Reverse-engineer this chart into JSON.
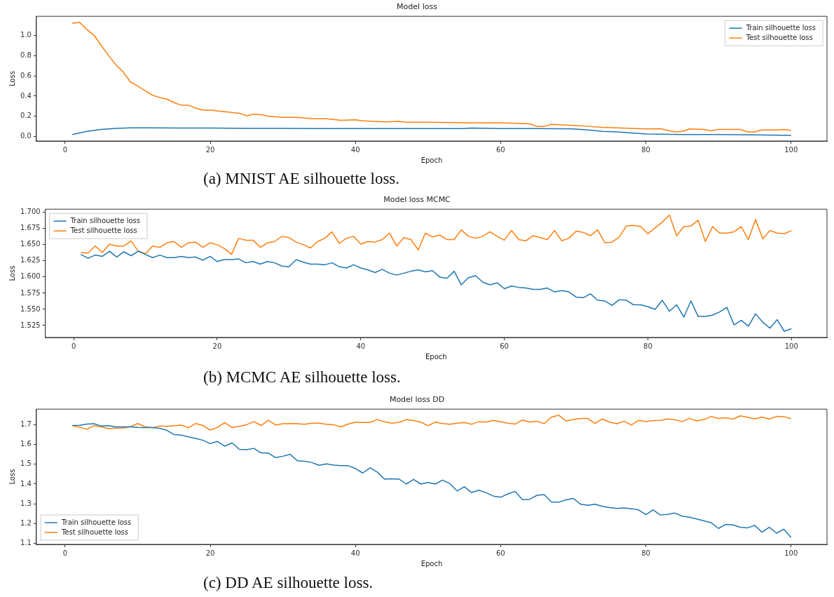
{
  "chart_data": [
    {
      "type": "line",
      "title": "Model loss",
      "xlabel": "Epoch",
      "ylabel": "Loss",
      "xlim": [
        -3.95,
        104.95
      ],
      "xticks": [
        0,
        20,
        40,
        60,
        80,
        100
      ],
      "ylim": [
        -0.045,
        1.19
      ],
      "yticks": [
        {
          "value": 0,
          "label": "0.0"
        },
        0.2,
        0.4,
        0.6,
        0.8,
        {
          "value": 1,
          "label": "1.0"
        }
      ],
      "legend": "top right",
      "annotations": [
        "(a) MNIST AE silhouette loss."
      ],
      "series": [
        {
          "name": "Train silhouette loss",
          "color": "#1f77b4",
          "x": [
            1,
            3,
            5,
            7,
            9,
            12,
            16,
            20,
            25,
            30,
            35,
            40,
            45,
            50,
            55,
            56,
            60,
            65,
            70,
            72,
            74,
            76,
            80,
            85,
            90,
            95,
            100
          ],
          "values": [
            0.02,
            0.05,
            0.07,
            0.08,
            0.085,
            0.085,
            0.083,
            0.083,
            0.08,
            0.08,
            0.078,
            0.078,
            0.078,
            0.078,
            0.078,
            0.083,
            0.078,
            0.078,
            0.075,
            0.065,
            0.05,
            0.045,
            0.025,
            0.02,
            0.02,
            0.015,
            0.01
          ]
        },
        {
          "name": "Test silhouette loss",
          "color": "#ff7f0e",
          "x": [
            1,
            2,
            3,
            4,
            5,
            6,
            7,
            8,
            9,
            10,
            11,
            12,
            13,
            14,
            15,
            16,
            17,
            18,
            19,
            20,
            22,
            24,
            25,
            26,
            27,
            28,
            30,
            32,
            34,
            36,
            38,
            40,
            41,
            44,
            46,
            47,
            50,
            55,
            60,
            62,
            64,
            65,
            66,
            67,
            70,
            72,
            74,
            76,
            80,
            82,
            84,
            85,
            86,
            88,
            89,
            90,
            93,
            94,
            95,
            96,
            98,
            99,
            100
          ],
          "values": [
            1.12,
            1.13,
            1.06,
            1.0,
            0.9,
            0.8,
            0.71,
            0.64,
            0.54,
            0.5,
            0.455,
            0.41,
            0.385,
            0.37,
            0.335,
            0.31,
            0.31,
            0.28,
            0.26,
            0.26,
            0.245,
            0.23,
            0.205,
            0.22,
            0.215,
            0.2,
            0.19,
            0.19,
            0.175,
            0.175,
            0.16,
            0.165,
            0.155,
            0.145,
            0.15,
            0.14,
            0.14,
            0.135,
            0.136,
            0.13,
            0.125,
            0.1,
            0.1,
            0.12,
            0.11,
            0.1,
            0.09,
            0.085,
            0.075,
            0.077,
            0.045,
            0.05,
            0.075,
            0.07,
            0.055,
            0.07,
            0.07,
            0.045,
            0.045,
            0.065,
            0.065,
            0.07,
            0.06
          ]
        }
      ]
    },
    {
      "type": "line",
      "title": "Model loss MCMC",
      "xlabel": "Epoch",
      "ylabel": "Loss",
      "xlim": [
        -3.95,
        104.95
      ],
      "xticks": [
        0,
        20,
        40,
        60,
        80,
        100
      ],
      "ylim": [
        1.5065,
        1.705
      ],
      "yticks": [
        1.525,
        {
          "value": 1.55,
          "label": "1.550"
        },
        1.575,
        {
          "value": 1.6,
          "label": "1.600"
        },
        1.625,
        {
          "value": 1.65,
          "label": "1.650"
        },
        1.675,
        {
          "value": 1.7,
          "label": "1.700"
        }
      ],
      "legend": "top left",
      "annotations": [
        "(b) MCMC AE silhouette loss."
      ],
      "x": [
        1,
        2,
        3,
        4,
        5,
        6,
        7,
        8,
        9,
        10,
        11,
        12,
        13,
        14,
        15,
        16,
        17,
        18,
        19,
        20,
        21,
        22,
        23,
        24,
        25,
        26,
        27,
        28,
        29,
        30,
        31,
        32,
        33,
        34,
        35,
        36,
        37,
        38,
        39,
        40,
        41,
        42,
        43,
        44,
        45,
        46,
        47,
        48,
        49,
        50,
        51,
        52,
        53,
        54,
        55,
        56,
        57,
        58,
        59,
        60,
        61,
        62,
        63,
        64,
        65,
        66,
        67,
        68,
        69,
        70,
        71,
        72,
        73,
        74,
        75,
        76,
        77,
        78,
        79,
        80,
        81,
        82,
        83,
        84,
        85,
        86,
        87,
        88,
        89,
        90,
        91,
        92,
        93,
        94,
        95,
        96,
        97,
        98,
        99,
        100
      ],
      "series": [
        {
          "name": "Train silhouette loss",
          "color": "#1f77b4",
          "values": [
            1.635,
            1.629,
            1.634,
            1.632,
            1.64,
            1.631,
            1.639,
            1.633,
            1.64,
            1.635,
            1.63,
            1.634,
            1.63,
            1.63,
            1.632,
            1.63,
            1.631,
            1.626,
            1.632,
            1.624,
            1.627,
            1.627,
            1.628,
            1.622,
            1.624,
            1.62,
            1.624,
            1.622,
            1.617,
            1.616,
            1.627,
            1.623,
            1.62,
            1.62,
            1.619,
            1.622,
            1.616,
            1.614,
            1.619,
            1.614,
            1.611,
            1.607,
            1.612,
            1.606,
            1.603,
            1.606,
            1.609,
            1.611,
            1.608,
            1.61,
            1.6,
            1.598,
            1.609,
            1.588,
            1.599,
            1.602,
            1.592,
            1.588,
            1.591,
            1.582,
            1.586,
            1.584,
            1.583,
            1.581,
            1.581,
            1.583,
            1.577,
            1.579,
            1.577,
            1.569,
            1.568,
            1.574,
            1.564,
            1.563,
            1.556,
            1.565,
            1.564,
            1.557,
            1.557,
            1.554,
            1.55,
            1.564,
            1.547,
            1.557,
            1.538,
            1.563,
            1.539,
            1.539,
            1.541,
            1.546,
            1.553,
            1.526,
            1.533,
            1.524,
            1.543,
            1.53,
            1.521,
            1.534,
            1.516,
            1.52
          ]
        },
        {
          "name": "Test silhouette loss",
          "color": "#ff7f0e",
          "values": [
            1.638,
            1.637,
            1.648,
            1.638,
            1.651,
            1.648,
            1.648,
            1.656,
            1.64,
            1.636,
            1.648,
            1.646,
            1.653,
            1.655,
            1.646,
            1.653,
            1.654,
            1.646,
            1.653,
            1.65,
            1.644,
            1.635,
            1.66,
            1.657,
            1.657,
            1.646,
            1.653,
            1.655,
            1.663,
            1.661,
            1.654,
            1.65,
            1.645,
            1.655,
            1.66,
            1.67,
            1.652,
            1.66,
            1.663,
            1.651,
            1.655,
            1.654,
            1.658,
            1.668,
            1.648,
            1.661,
            1.658,
            1.642,
            1.668,
            1.662,
            1.665,
            1.658,
            1.658,
            1.673,
            1.663,
            1.66,
            1.663,
            1.67,
            1.663,
            1.657,
            1.672,
            1.658,
            1.656,
            1.664,
            1.661,
            1.658,
            1.672,
            1.656,
            1.66,
            1.671,
            1.669,
            1.664,
            1.673,
            1.653,
            1.654,
            1.662,
            1.679,
            1.68,
            1.678,
            1.667,
            1.676,
            1.685,
            1.696,
            1.664,
            1.678,
            1.679,
            1.688,
            1.655,
            1.678,
            1.668,
            1.668,
            1.67,
            1.678,
            1.658,
            1.689,
            1.659,
            1.672,
            1.668,
            1.667,
            1.672
          ]
        }
      ]
    },
    {
      "type": "line",
      "title": "Model loss DD",
      "xlabel": "Epoch",
      "ylabel": "Loss",
      "xlim": [
        -3.95,
        104.95
      ],
      "xticks": [
        0,
        20,
        40,
        60,
        80,
        100
      ],
      "ylim": [
        1.094,
        1.78
      ],
      "yticks": [
        1.1,
        1.2,
        1.3,
        1.4,
        1.5,
        1.6,
        1.7
      ],
      "legend": "bottom left",
      "annotations": [
        "(c) DD AE silhouette loss."
      ],
      "x": [
        1,
        2,
        3,
        4,
        5,
        6,
        7,
        8,
        9,
        10,
        11,
        12,
        13,
        14,
        15,
        16,
        17,
        18,
        19,
        20,
        21,
        22,
        23,
        24,
        25,
        26,
        27,
        28,
        29,
        30,
        31,
        32,
        33,
        34,
        35,
        36,
        37,
        38,
        39,
        40,
        41,
        42,
        43,
        44,
        45,
        46,
        47,
        48,
        49,
        50,
        51,
        52,
        53,
        54,
        55,
        56,
        57,
        58,
        59,
        60,
        61,
        62,
        63,
        64,
        65,
        66,
        67,
        68,
        69,
        70,
        71,
        72,
        73,
        74,
        75,
        76,
        77,
        78,
        79,
        80,
        81,
        82,
        83,
        84,
        85,
        86,
        87,
        88,
        89,
        90,
        91,
        92,
        93,
        94,
        95,
        96,
        97,
        98,
        99,
        100
      ],
      "series": [
        {
          "name": "Train silhouette loss",
          "color": "#1f77b4",
          "values": [
            1.697,
            1.698,
            1.704,
            1.706,
            1.694,
            1.696,
            1.69,
            1.69,
            1.69,
            1.687,
            1.686,
            1.686,
            1.683,
            1.673,
            1.651,
            1.648,
            1.639,
            1.631,
            1.622,
            1.605,
            1.616,
            1.592,
            1.609,
            1.576,
            1.574,
            1.581,
            1.558,
            1.557,
            1.534,
            1.541,
            1.551,
            1.518,
            1.516,
            1.509,
            1.495,
            1.502,
            1.496,
            1.493,
            1.493,
            1.479,
            1.456,
            1.482,
            1.461,
            1.425,
            1.427,
            1.425,
            1.4,
            1.424,
            1.4,
            1.408,
            1.4,
            1.42,
            1.402,
            1.365,
            1.386,
            1.357,
            1.369,
            1.356,
            1.339,
            1.333,
            1.35,
            1.363,
            1.321,
            1.323,
            1.343,
            1.347,
            1.308,
            1.308,
            1.32,
            1.327,
            1.298,
            1.292,
            1.298,
            1.287,
            1.281,
            1.276,
            1.279,
            1.275,
            1.269,
            1.245,
            1.269,
            1.243,
            1.246,
            1.253,
            1.237,
            1.232,
            1.223,
            1.213,
            1.204,
            1.175,
            1.195,
            1.193,
            1.181,
            1.178,
            1.19,
            1.156,
            1.181,
            1.151,
            1.171,
            1.129
          ]
        },
        {
          "name": "Test silhouette loss",
          "color": "#ff7f0e",
          "values": [
            1.697,
            1.687,
            1.678,
            1.696,
            1.69,
            1.681,
            1.684,
            1.684,
            1.691,
            1.707,
            1.691,
            1.686,
            1.694,
            1.693,
            1.696,
            1.699,
            1.686,
            1.707,
            1.697,
            1.674,
            1.687,
            1.712,
            1.687,
            1.693,
            1.701,
            1.717,
            1.697,
            1.723,
            1.7,
            1.706,
            1.707,
            1.706,
            1.703,
            1.709,
            1.709,
            1.703,
            1.701,
            1.69,
            1.704,
            1.713,
            1.712,
            1.712,
            1.727,
            1.716,
            1.709,
            1.713,
            1.727,
            1.722,
            1.714,
            1.696,
            1.714,
            1.707,
            1.703,
            1.709,
            1.712,
            1.703,
            1.717,
            1.714,
            1.723,
            1.716,
            1.709,
            1.704,
            1.725,
            1.714,
            1.719,
            1.706,
            1.74,
            1.749,
            1.72,
            1.727,
            1.733,
            1.733,
            1.707,
            1.73,
            1.714,
            1.706,
            1.719,
            1.699,
            1.723,
            1.717,
            1.722,
            1.723,
            1.73,
            1.726,
            1.717,
            1.733,
            1.72,
            1.727,
            1.743,
            1.733,
            1.736,
            1.729,
            1.746,
            1.739,
            1.73,
            1.74,
            1.729,
            1.743,
            1.742,
            1.732
          ]
        }
      ]
    }
  ]
}
